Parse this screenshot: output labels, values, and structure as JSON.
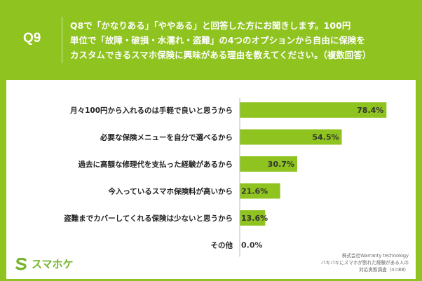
{
  "header": {
    "question_number": "Q9",
    "question_lines": [
      "Q8で「かなりある」「ややある」と回答した方にお聞きします。100円",
      "単位で「故障・破損・水濡れ・盗難」の4つのオプションから自由に保険を",
      "カスタムできるスマホ保険に興味がある理由を教えてください。（複数回答）"
    ]
  },
  "chart_data": {
    "type": "bar",
    "orientation": "horizontal",
    "categories": [
      "月々100円から入れるのは手軽で良いと思うから",
      "必要な保険メニューを自分で選べるから",
      "過去に高額な修理代を支払った経験があるから",
      "今入っているスマホ保険料が高いから",
      "盗難までカバーしてくれる保険は少ないと思うから",
      "その他"
    ],
    "values": [
      78.4,
      54.5,
      30.7,
      21.6,
      13.6,
      0.0
    ],
    "value_labels": [
      "78.4%",
      "54.5%",
      "30.7%",
      "21.6%",
      "13.6%",
      "0.0%"
    ],
    "xlim": [
      0,
      100
    ],
    "bar_color": "#8fc31f",
    "grid": false,
    "legend": "none"
  },
  "source": {
    "lines": [
      "株式会社Warranty technology",
      "バキバキにスマホが割れた経験がある人の",
      "対応実態調査（n=88）"
    ]
  },
  "brand": {
    "name": "スマホケ",
    "color": "#76b52c"
  }
}
